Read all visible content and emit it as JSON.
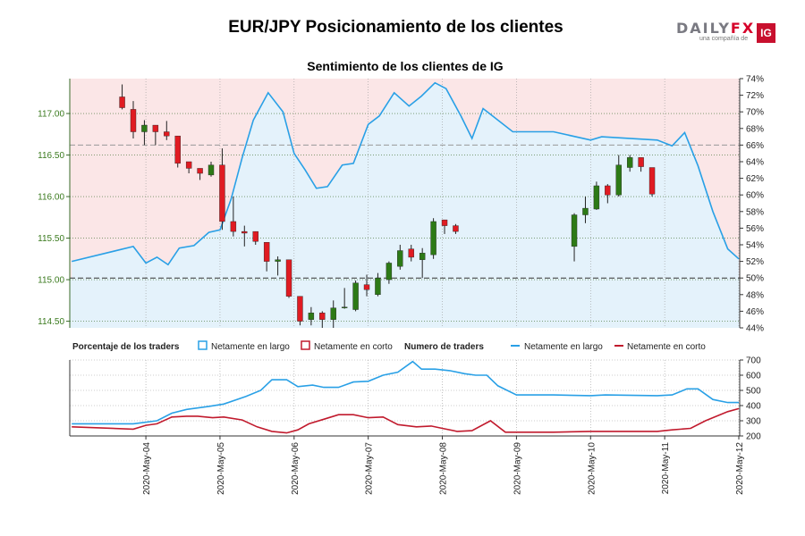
{
  "title": "EUR/JPY Posicionamiento de los clientes",
  "logo": {
    "brand_left": "DAILY",
    "brand_right": "FX",
    "tagline": "una compañía de",
    "badge": "IG"
  },
  "chart_data": [
    {
      "type": "candlestick",
      "title": "Sentimiento de los clientes de IG",
      "left_axis": {
        "ticks": [
          114.5,
          115.0,
          115.5,
          116.0,
          116.5,
          117.0
        ],
        "labels": [
          "114.50",
          "115.00",
          "115.50",
          "116.00",
          "116.50",
          "117.00"
        ],
        "range": [
          114.42,
          117.42
        ]
      },
      "right_axis": {
        "ticks": [
          44,
          46,
          48,
          50,
          52,
          54,
          56,
          58,
          60,
          62,
          64,
          66,
          68,
          70,
          72,
          74
        ],
        "labels": [
          "44%",
          "46%",
          "48%",
          "50%",
          "52%",
          "54%",
          "56%",
          "58%",
          "60%",
          "62%",
          "64%",
          "66%",
          "68%",
          "70%",
          "72%",
          "74%"
        ],
        "range": [
          44,
          74
        ]
      },
      "reference_lines": [
        {
          "axis": "right",
          "value": 50
        },
        {
          "axis": "right",
          "value": 66
        }
      ],
      "grid": true,
      "candles": [
        {
          "t": 0.68,
          "o": 117.2,
          "h": 117.35,
          "l": 117.05,
          "c": 117.07
        },
        {
          "t": 0.83,
          "o": 117.05,
          "h": 117.15,
          "l": 116.7,
          "c": 116.78
        },
        {
          "t": 0.98,
          "o": 116.78,
          "h": 116.92,
          "l": 116.62,
          "c": 116.86
        },
        {
          "t": 1.13,
          "o": 116.86,
          "h": 116.86,
          "l": 116.62,
          "c": 116.78
        },
        {
          "t": 1.28,
          "o": 116.78,
          "h": 116.91,
          "l": 116.68,
          "c": 116.73
        },
        {
          "t": 1.43,
          "o": 116.73,
          "h": 116.73,
          "l": 116.35,
          "c": 116.4
        },
        {
          "t": 1.58,
          "o": 116.42,
          "h": 116.42,
          "l": 116.28,
          "c": 116.34
        },
        {
          "t": 1.73,
          "o": 116.34,
          "h": 116.34,
          "l": 116.2,
          "c": 116.28
        },
        {
          "t": 1.88,
          "o": 116.26,
          "h": 116.42,
          "l": 116.24,
          "c": 116.38
        },
        {
          "t": 2.03,
          "o": 116.38,
          "h": 116.58,
          "l": 115.6,
          "c": 115.7
        },
        {
          "t": 2.18,
          "o": 115.7,
          "h": 116.0,
          "l": 115.52,
          "c": 115.58
        },
        {
          "t": 2.33,
          "o": 115.58,
          "h": 115.65,
          "l": 115.4,
          "c": 115.56
        },
        {
          "t": 2.48,
          "o": 115.58,
          "h": 115.58,
          "l": 115.42,
          "c": 115.46
        },
        {
          "t": 2.63,
          "o": 115.45,
          "h": 115.45,
          "l": 115.1,
          "c": 115.22
        },
        {
          "t": 2.78,
          "o": 115.22,
          "h": 115.28,
          "l": 115.05,
          "c": 115.24
        },
        {
          "t": 2.93,
          "o": 115.24,
          "h": 115.24,
          "l": 114.78,
          "c": 114.8
        },
        {
          "t": 3.08,
          "o": 114.8,
          "h": 114.8,
          "l": 114.45,
          "c": 114.5
        },
        {
          "t": 3.23,
          "o": 114.52,
          "h": 114.67,
          "l": 114.45,
          "c": 114.6
        },
        {
          "t": 3.38,
          "o": 114.6,
          "h": 114.62,
          "l": 114.42,
          "c": 114.52
        },
        {
          "t": 3.53,
          "o": 114.52,
          "h": 114.75,
          "l": 114.42,
          "c": 114.66
        },
        {
          "t": 3.68,
          "o": 114.66,
          "h": 114.9,
          "l": 114.65,
          "c": 114.67
        },
        {
          "t": 3.83,
          "o": 114.64,
          "h": 114.99,
          "l": 114.62,
          "c": 114.96
        },
        {
          "t": 3.98,
          "o": 114.94,
          "h": 115.06,
          "l": 114.8,
          "c": 114.88
        },
        {
          "t": 4.13,
          "o": 114.82,
          "h": 115.08,
          "l": 114.8,
          "c": 115.02
        },
        {
          "t": 4.28,
          "o": 115.0,
          "h": 115.22,
          "l": 114.95,
          "c": 115.2
        },
        {
          "t": 4.43,
          "o": 115.16,
          "h": 115.42,
          "l": 115.12,
          "c": 115.35
        },
        {
          "t": 4.58,
          "o": 115.37,
          "h": 115.42,
          "l": 115.22,
          "c": 115.27
        },
        {
          "t": 4.73,
          "o": 115.24,
          "h": 115.38,
          "l": 115.02,
          "c": 115.32
        },
        {
          "t": 4.88,
          "o": 115.3,
          "h": 115.74,
          "l": 115.25,
          "c": 115.7
        },
        {
          "t": 5.03,
          "o": 115.72,
          "h": 115.72,
          "l": 115.55,
          "c": 115.65
        },
        {
          "t": 5.18,
          "o": 115.65,
          "h": 115.67,
          "l": 115.55,
          "c": 115.58
        },
        {
          "t": 6.78,
          "o": 115.4,
          "h": 115.8,
          "l": 115.22,
          "c": 115.78
        },
        {
          "t": 6.93,
          "o": 115.78,
          "h": 116.0,
          "l": 115.68,
          "c": 115.86
        },
        {
          "t": 7.08,
          "o": 115.85,
          "h": 116.18,
          "l": 115.84,
          "c": 116.13
        },
        {
          "t": 7.23,
          "o": 116.13,
          "h": 116.15,
          "l": 115.92,
          "c": 116.02
        },
        {
          "t": 7.38,
          "o": 116.02,
          "h": 116.5,
          "l": 116.0,
          "c": 116.38
        },
        {
          "t": 7.53,
          "o": 116.35,
          "h": 116.5,
          "l": 116.3,
          "c": 116.47
        },
        {
          "t": 7.68,
          "o": 116.47,
          "h": 116.47,
          "l": 116.3,
          "c": 116.36
        },
        {
          "t": 7.83,
          "o": 116.35,
          "h": 116.35,
          "l": 116.0,
          "c": 116.03
        }
      ],
      "net_long_pct": [
        {
          "t": 0.0,
          "v": 52.0
        },
        {
          "t": 0.83,
          "v": 53.8
        },
        {
          "t": 1.0,
          "v": 51.8
        },
        {
          "t": 1.15,
          "v": 52.5
        },
        {
          "t": 1.3,
          "v": 51.6
        },
        {
          "t": 1.45,
          "v": 53.6
        },
        {
          "t": 1.65,
          "v": 53.9
        },
        {
          "t": 1.85,
          "v": 55.5
        },
        {
          "t": 2.0,
          "v": 55.8
        },
        {
          "t": 2.15,
          "v": 59.5
        },
        {
          "t": 2.3,
          "v": 64.5
        },
        {
          "t": 2.45,
          "v": 69.0
        },
        {
          "t": 2.65,
          "v": 72.3
        },
        {
          "t": 2.85,
          "v": 70.0
        },
        {
          "t": 3.0,
          "v": 65.0
        },
        {
          "t": 3.15,
          "v": 63.0
        },
        {
          "t": 3.3,
          "v": 60.8
        },
        {
          "t": 3.45,
          "v": 61.0
        },
        {
          "t": 3.65,
          "v": 63.6
        },
        {
          "t": 3.8,
          "v": 63.8
        },
        {
          "t": 4.0,
          "v": 68.5
        },
        {
          "t": 4.15,
          "v": 69.5
        },
        {
          "t": 4.35,
          "v": 72.3
        },
        {
          "t": 4.55,
          "v": 70.7
        },
        {
          "t": 4.72,
          "v": 71.9
        },
        {
          "t": 4.9,
          "v": 73.5
        },
        {
          "t": 5.05,
          "v": 72.8
        },
        {
          "t": 5.25,
          "v": 69.5
        },
        {
          "t": 5.4,
          "v": 66.8
        },
        {
          "t": 5.55,
          "v": 70.4
        },
        {
          "t": 5.95,
          "v": 67.6
        },
        {
          "t": 6.5,
          "v": 67.6
        },
        {
          "t": 7.0,
          "v": 66.6
        },
        {
          "t": 7.15,
          "v": 67.0
        },
        {
          "t": 7.9,
          "v": 66.6
        },
        {
          "t": 8.1,
          "v": 65.9
        },
        {
          "t": 8.27,
          "v": 67.5
        },
        {
          "t": 8.45,
          "v": 63.5
        },
        {
          "t": 8.65,
          "v": 58.0
        },
        {
          "t": 8.85,
          "v": 53.5
        },
        {
          "t": 9.0,
          "v": 52.3
        }
      ],
      "x_ticks": [
        "2020-May-04",
        "2020-May-05",
        "2020-May-06",
        "2020-May-07",
        "2020-May-08",
        "2020-May-09",
        "2020-May-10",
        "2020-May-11",
        "2020-May-12"
      ]
    },
    {
      "type": "line",
      "y_ticks": [
        200,
        300,
        400,
        500,
        600,
        700
      ],
      "y_labels": [
        "200",
        "300",
        "400",
        "500",
        "600",
        "700"
      ],
      "ylim": [
        200,
        700
      ],
      "grid": true,
      "legend": {
        "pct_title": "Porcentaje de los traders",
        "pct_long": "Netamente en largo",
        "pct_short": "Netamente en corto",
        "num_title": "Numero de traders",
        "num_long": "Netamente en largo",
        "num_short": "Netamente en corto"
      },
      "series": [
        {
          "key": "long",
          "color": "#29a0e6",
          "points": [
            {
              "t": 0.0,
              "v": 280
            },
            {
              "t": 0.83,
              "v": 280
            },
            {
              "t": 1.15,
              "v": 300
            },
            {
              "t": 1.35,
              "v": 350
            },
            {
              "t": 1.55,
              "v": 375
            },
            {
              "t": 1.85,
              "v": 395
            },
            {
              "t": 2.05,
              "v": 410
            },
            {
              "t": 2.35,
              "v": 460
            },
            {
              "t": 2.55,
              "v": 500
            },
            {
              "t": 2.7,
              "v": 570
            },
            {
              "t": 2.9,
              "v": 570
            },
            {
              "t": 3.05,
              "v": 525
            },
            {
              "t": 3.25,
              "v": 535
            },
            {
              "t": 3.4,
              "v": 520
            },
            {
              "t": 3.6,
              "v": 520
            },
            {
              "t": 3.8,
              "v": 555
            },
            {
              "t": 4.0,
              "v": 560
            },
            {
              "t": 4.2,
              "v": 600
            },
            {
              "t": 4.4,
              "v": 620
            },
            {
              "t": 4.6,
              "v": 690
            },
            {
              "t": 4.72,
              "v": 640
            },
            {
              "t": 4.9,
              "v": 640
            },
            {
              "t": 5.1,
              "v": 630
            },
            {
              "t": 5.3,
              "v": 610
            },
            {
              "t": 5.45,
              "v": 600
            },
            {
              "t": 5.6,
              "v": 600
            },
            {
              "t": 5.75,
              "v": 530
            },
            {
              "t": 6.0,
              "v": 470
            },
            {
              "t": 6.5,
              "v": 470
            },
            {
              "t": 7.0,
              "v": 465
            },
            {
              "t": 7.2,
              "v": 470
            },
            {
              "t": 7.9,
              "v": 465
            },
            {
              "t": 8.1,
              "v": 470
            },
            {
              "t": 8.3,
              "v": 510
            },
            {
              "t": 8.45,
              "v": 510
            },
            {
              "t": 8.65,
              "v": 440
            },
            {
              "t": 8.85,
              "v": 420
            },
            {
              "t": 9.0,
              "v": 420
            }
          ]
        },
        {
          "key": "short",
          "color": "#c11a2d",
          "points": [
            {
              "t": 0.0,
              "v": 260
            },
            {
              "t": 0.83,
              "v": 245
            },
            {
              "t": 1.0,
              "v": 270
            },
            {
              "t": 1.15,
              "v": 280
            },
            {
              "t": 1.35,
              "v": 325
            },
            {
              "t": 1.55,
              "v": 330
            },
            {
              "t": 1.7,
              "v": 330
            },
            {
              "t": 1.9,
              "v": 320
            },
            {
              "t": 2.05,
              "v": 325
            },
            {
              "t": 2.3,
              "v": 305
            },
            {
              "t": 2.5,
              "v": 260
            },
            {
              "t": 2.7,
              "v": 230
            },
            {
              "t": 2.9,
              "v": 220
            },
            {
              "t": 3.05,
              "v": 240
            },
            {
              "t": 3.2,
              "v": 280
            },
            {
              "t": 3.4,
              "v": 310
            },
            {
              "t": 3.6,
              "v": 340
            },
            {
              "t": 3.8,
              "v": 340
            },
            {
              "t": 4.0,
              "v": 320
            },
            {
              "t": 4.2,
              "v": 325
            },
            {
              "t": 4.4,
              "v": 275
            },
            {
              "t": 4.65,
              "v": 260
            },
            {
              "t": 4.85,
              "v": 265
            },
            {
              "t": 5.0,
              "v": 250
            },
            {
              "t": 5.2,
              "v": 230
            },
            {
              "t": 5.4,
              "v": 235
            },
            {
              "t": 5.65,
              "v": 300
            },
            {
              "t": 5.85,
              "v": 225
            },
            {
              "t": 6.5,
              "v": 225
            },
            {
              "t": 7.0,
              "v": 230
            },
            {
              "t": 7.9,
              "v": 230
            },
            {
              "t": 8.1,
              "v": 240
            },
            {
              "t": 8.35,
              "v": 250
            },
            {
              "t": 8.55,
              "v": 300
            },
            {
              "t": 8.85,
              "v": 360
            },
            {
              "t": 9.0,
              "v": 380
            }
          ]
        }
      ]
    }
  ]
}
